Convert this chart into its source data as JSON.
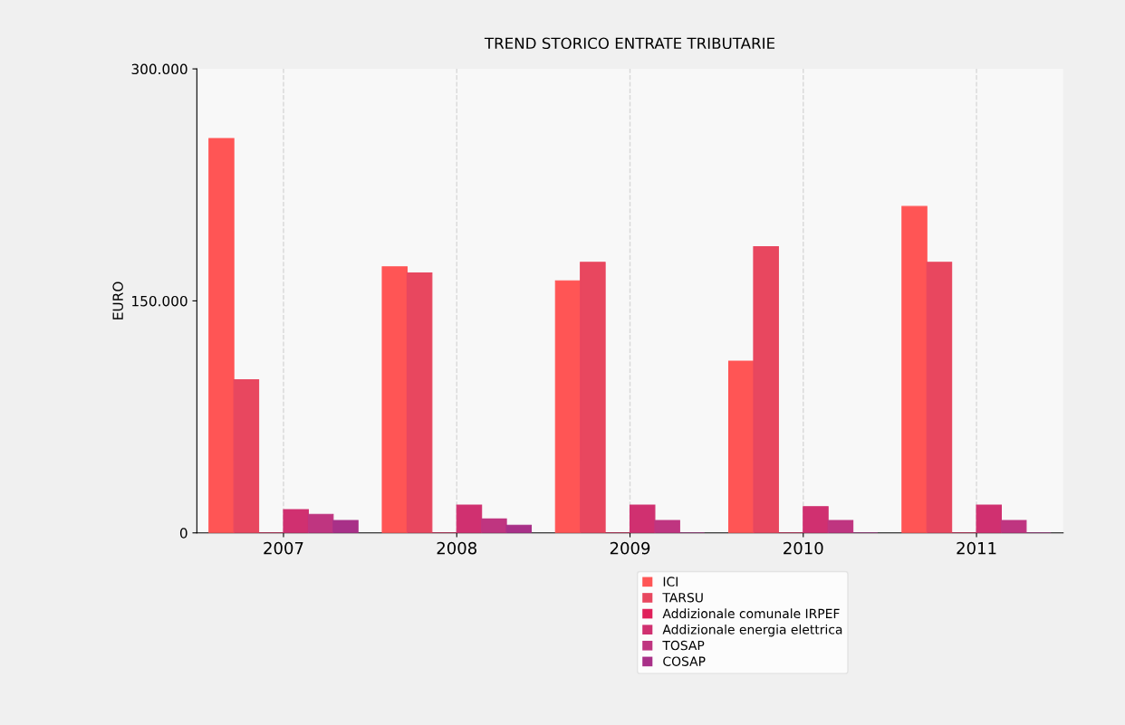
{
  "chart_data": {
    "type": "bar",
    "title": "TREND STORICO ENTRATE TRIBUTARIE",
    "ylabel": "EURO",
    "categories": [
      "2007",
      "2008",
      "2009",
      "2010",
      "2011"
    ],
    "series": [
      {
        "name": "ICI",
        "color": "#ff5555",
        "values": [
          255000,
          172000,
          163000,
          111000,
          211000
        ]
      },
      {
        "name": "TARSU",
        "color": "#e8475f",
        "values": [
          99000,
          168000,
          175000,
          185000,
          175000
        ]
      },
      {
        "name": "Addizionale comunale IRPEF",
        "color": "#e0205a",
        "values": [
          0,
          0,
          0,
          0,
          0
        ]
      },
      {
        "name": "Addizionale energia elettrica",
        "color": "#d03070",
        "values": [
          15000,
          18000,
          18000,
          17000,
          18000
        ]
      },
      {
        "name": "TOSAP",
        "color": "#bf3580",
        "values": [
          12000,
          9000,
          8000,
          8000,
          8000
        ]
      },
      {
        "name": "COSAP",
        "color": "#a83088",
        "values": [
          8000,
          5000,
          0,
          0,
          0
        ]
      }
    ],
    "ylim": [
      0,
      300000
    ],
    "yticks": [
      {
        "value": 0,
        "label": "0"
      },
      {
        "value": 150000,
        "label": "150.000"
      },
      {
        "value": 300000,
        "label": "300.000"
      }
    ],
    "grid": "x",
    "legend": "bottom"
  }
}
